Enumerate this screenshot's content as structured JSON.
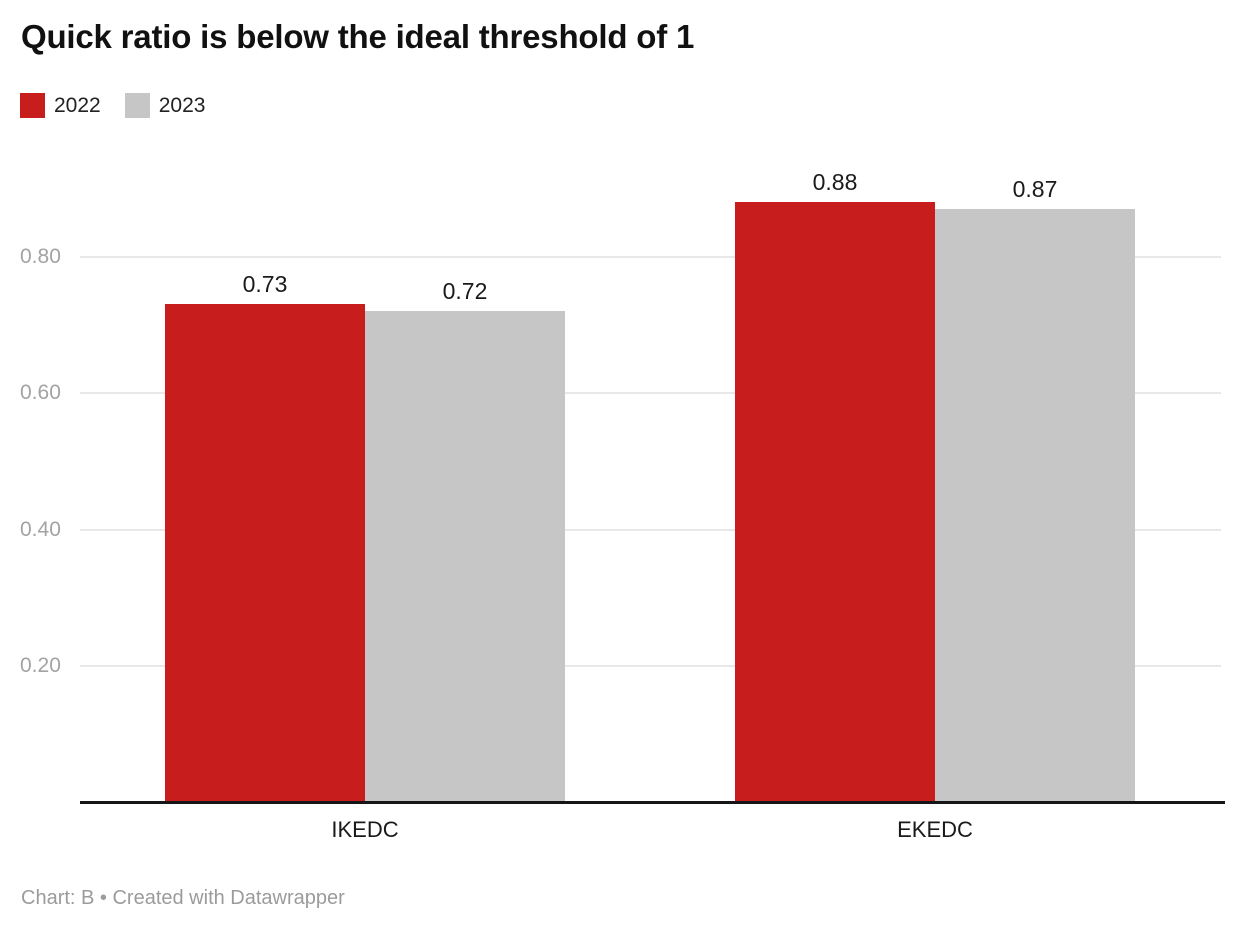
{
  "header": {
    "title": "Quick ratio is below the ideal threshold of 1"
  },
  "legend": {
    "items": [
      {
        "label": "2022",
        "color": "#c71e1d"
      },
      {
        "label": "2023",
        "color": "#c6c6c6"
      }
    ]
  },
  "footer": {
    "text": "Chart: B • Created with Datawrapper"
  },
  "colors": {
    "series_2022": "#c71e1d",
    "series_2023": "#c6c6c6",
    "gridline": "#e8e8e8",
    "tick_label": "#a3a3a3",
    "axis_line": "#161616",
    "label_text": "#1a1a1a",
    "footer_text": "#9b9b9b",
    "background": "#ffffff"
  },
  "chart_data": {
    "type": "bar",
    "title": "Quick ratio is below the ideal threshold of 1",
    "categories": [
      "IKEDC",
      "EKEDC"
    ],
    "series": [
      {
        "name": "2022",
        "color": "#c71e1d",
        "values": [
          0.73,
          0.88
        ]
      },
      {
        "name": "2023",
        "color": "#c6c6c6",
        "values": [
          0.72,
          0.87
        ]
      }
    ],
    "value_labels": [
      [
        "0.73",
        "0.88"
      ],
      [
        "0.72",
        "0.87"
      ]
    ],
    "y_ticks": [
      "0.20",
      "0.40",
      "0.60",
      "0.80"
    ],
    "ylim": [
      0,
      0.92
    ],
    "xlabel": "",
    "ylabel": "",
    "grid": "horizontal-only",
    "legend_position": "top-left",
    "value_labels_shown": true
  }
}
